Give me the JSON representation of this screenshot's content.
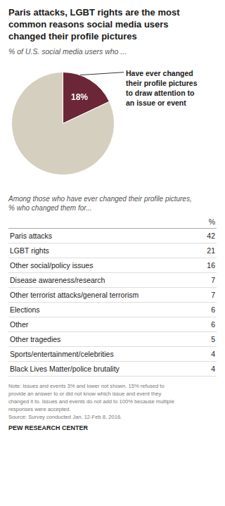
{
  "chart_data": [
    {
      "type": "pie",
      "title": "Paris attacks, LGBT rights are the most\ncommon reasons social media users\nchanged their profile pictures",
      "subtitle": "% of U.S. social media users who ...",
      "values": [
        18,
        82
      ],
      "colors": [
        "#6b2737",
        "#d5cfbf"
      ],
      "value_labels": [
        "18%",
        null
      ],
      "annotation": "Have ever changed\ntheir profile pictures\nto draw attention to\nan issue or event"
    },
    {
      "type": "table",
      "title": "Among those who have ever changed their profile pictures,\n% who changed them for...",
      "value_header": "%",
      "categories": [
        "Paris attacks",
        "LGBT rights",
        "Other social/policy issues",
        "Disease awareness/research",
        "Other terrorist attacks/general terrorism",
        "Elections",
        "Other",
        "Other tragedies",
        "Sports/entertainment/celebrities",
        "Black Lives Matter/police brutality"
      ],
      "values": [
        42,
        21,
        16,
        7,
        7,
        6,
        6,
        5,
        4,
        4
      ],
      "notes": [
        "Note: Issues and events 3% and lower not shown. 15% refused to",
        "provide an answer to or did not know which issue and event they",
        "changed it to. Issues and events do not add to 100% because multiple",
        "responses were accepted."
      ],
      "source": "Source: Survey conducted Jan. 12-Feb 8, 2016.",
      "credit": "PEW RESEARCH CENTER"
    }
  ]
}
